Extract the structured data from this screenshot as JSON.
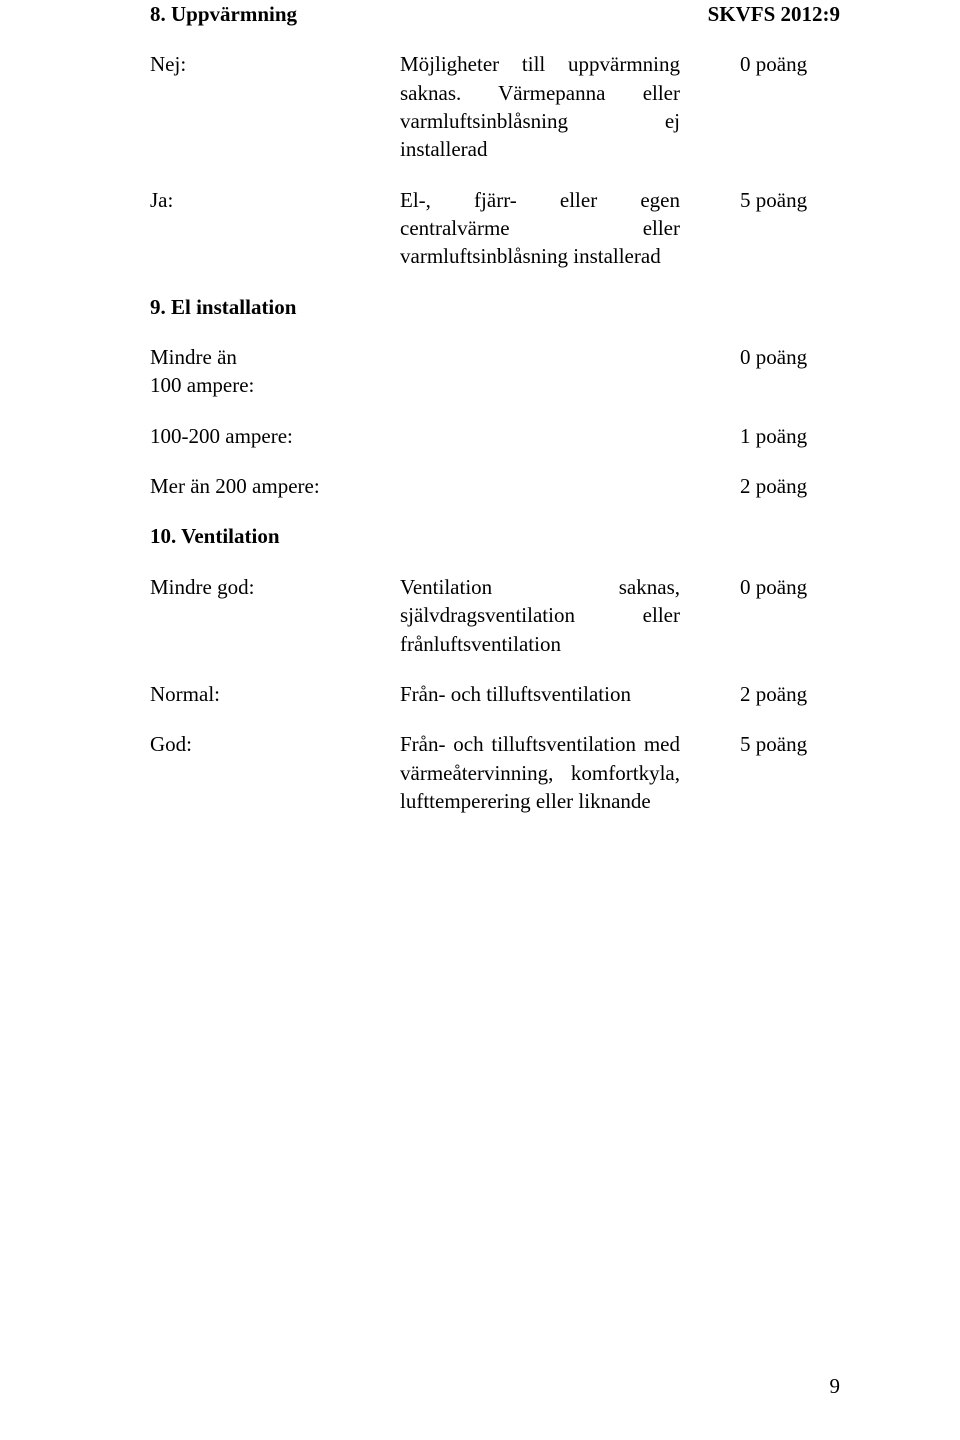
{
  "document_code": "SKVFS 2012:9",
  "s8": {
    "heading": "8. Uppvärmning",
    "rows": [
      {
        "label": "Nej:",
        "desc": "Möjligheter till uppvärmning saknas. Värmepanna eller varmluftsinblåsning ej installerad",
        "points": "0 poäng"
      },
      {
        "label": "Ja:",
        "desc": "El-, fjärr- eller egen centralvärme eller varmluftsinblåsning installerad",
        "points": "5 poäng"
      }
    ]
  },
  "s9": {
    "heading": "9. El installation",
    "rows": [
      {
        "label": "Mindre än",
        "points": "0 poäng"
      },
      {
        "label2": "100 ampere:",
        "points": ""
      },
      {
        "label": "100-200 ampere:",
        "points": "1 poäng"
      },
      {
        "label": "Mer än 200 ampere:",
        "points": "2 poäng"
      }
    ]
  },
  "s10": {
    "heading": "10. Ventilation",
    "rows": [
      {
        "label": "Mindre god:",
        "desc": "Ventilation saknas, självdragsventilation eller frånluftsventilation",
        "points": "0 poäng"
      },
      {
        "label": "Normal:",
        "desc": "Från- och tilluftsventilation",
        "points": "2 poäng"
      },
      {
        "label": "God:",
        "desc": "Från- och tilluftsventilation med värmeåtervinning, komfortkyla, lufttemperering eller liknande",
        "points": "5 poäng"
      }
    ]
  },
  "page_number": "9",
  "colors": {
    "text": "#000000",
    "background": "#ffffff"
  },
  "typography": {
    "font_family": "Times New Roman",
    "base_size_pt": 16
  }
}
